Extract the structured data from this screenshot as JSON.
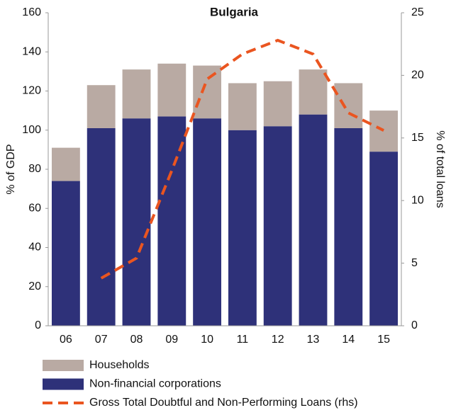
{
  "chart_data": {
    "type": "bar",
    "title": "Bulgaria",
    "y_label": "% of GDP",
    "y2_label": "% of total loans",
    "categories": [
      "06",
      "07",
      "08",
      "09",
      "10",
      "11",
      "12",
      "13",
      "14",
      "15"
    ],
    "stacked": true,
    "series": [
      {
        "name": "Households",
        "color": "#b9aaa3",
        "type": "bar",
        "values": [
          17,
          22,
          25,
          27,
          27,
          24,
          23,
          23,
          23,
          21
        ]
      },
      {
        "name": "Non-financial corporations",
        "color": "#2e3179",
        "type": "bar",
        "values": [
          74,
          101,
          106,
          107,
          106,
          100,
          102,
          108,
          101,
          89
        ]
      },
      {
        "name": "Gross Total Doubtful and Non-Performing Loans (rhs)",
        "color": "#ea5520",
        "type": "line",
        "axis": "y2",
        "dashed": true,
        "values": [
          null,
          3.8,
          5.4,
          12.4,
          19.7,
          21.7,
          22.8,
          21.7,
          17.0,
          15.6
        ]
      }
    ],
    "ylim": [
      0,
      160
    ],
    "yticks": [
      0,
      20,
      40,
      60,
      80,
      100,
      120,
      140,
      160
    ],
    "y2lim": [
      0,
      25
    ],
    "y2ticks": [
      0,
      5,
      10,
      15,
      20,
      25
    ]
  }
}
